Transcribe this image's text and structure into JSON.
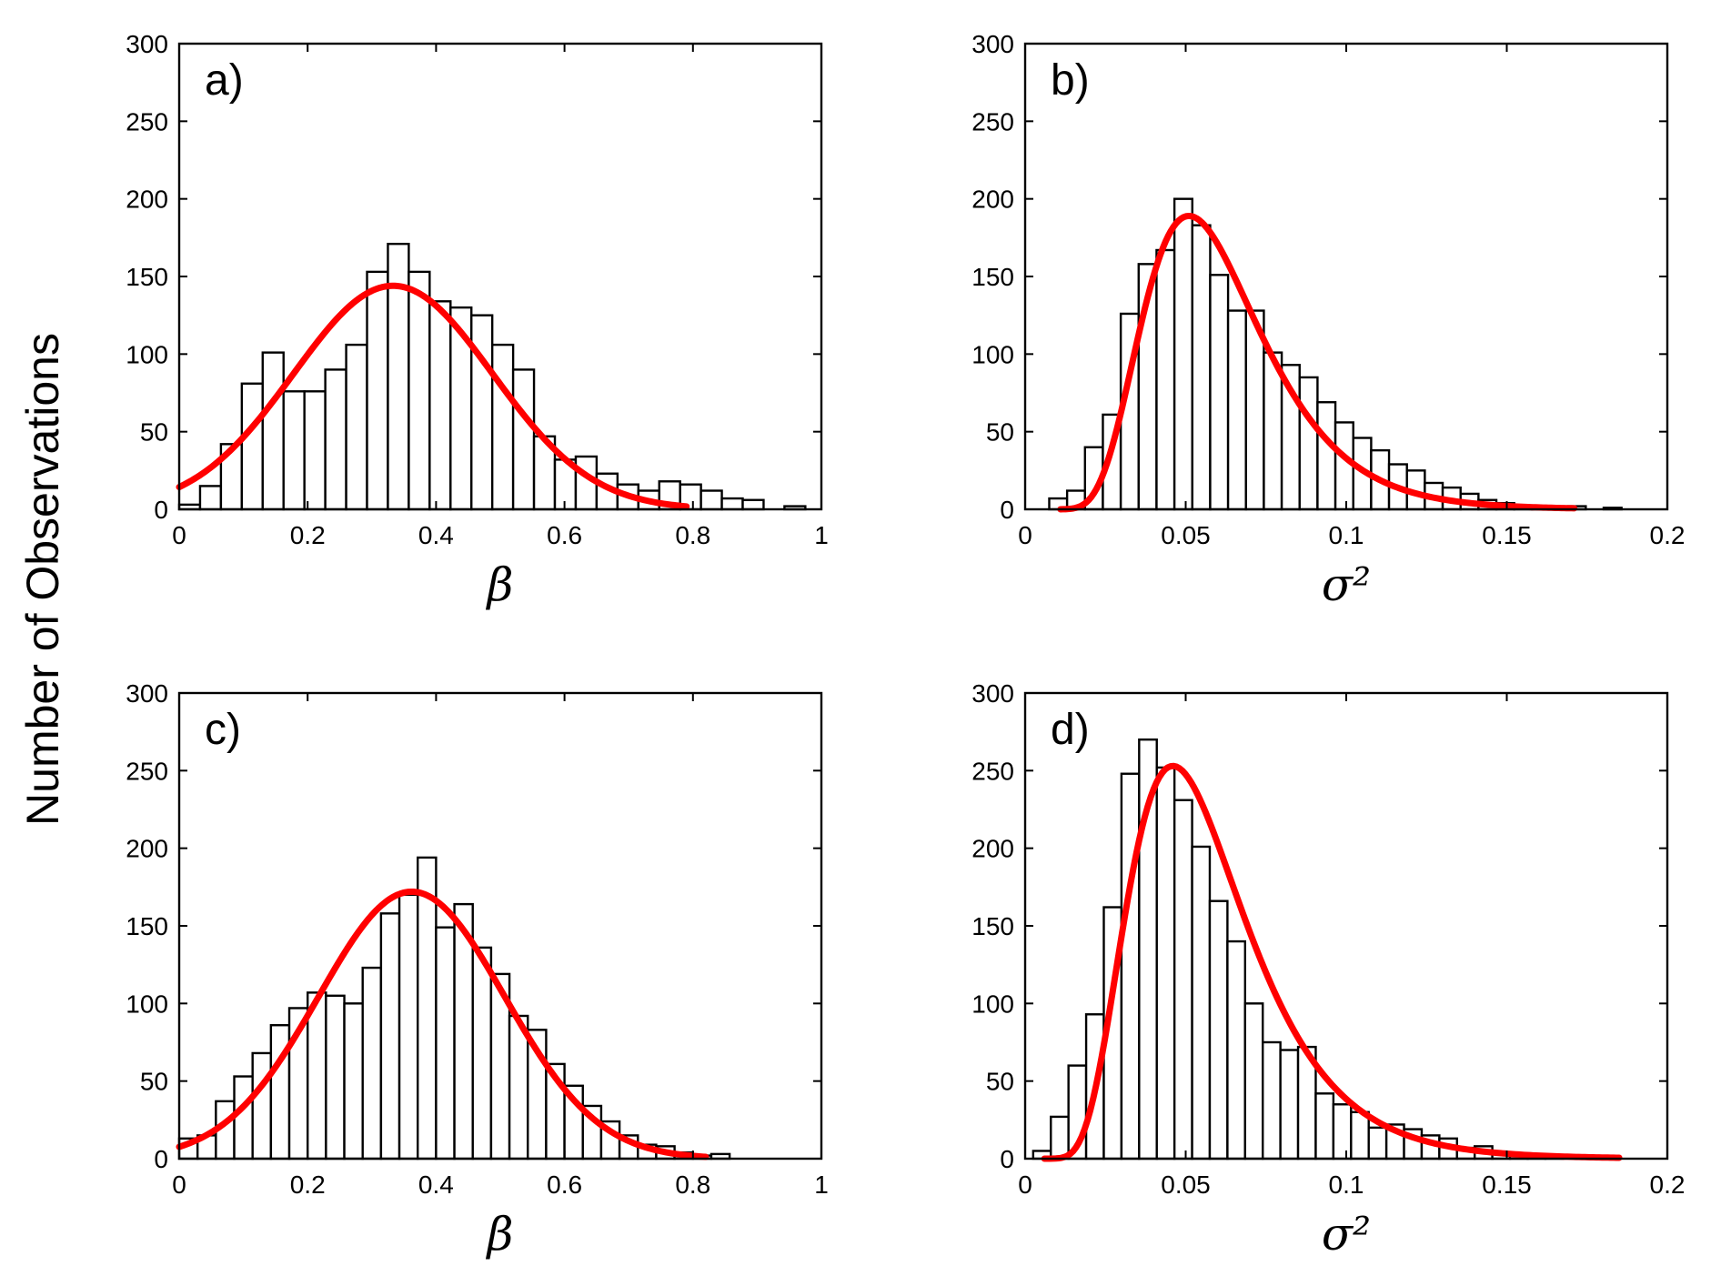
{
  "figure": {
    "ylabel": "Number of Observations",
    "colors": {
      "bar_fill": "#ffffff",
      "bar_edge": "#000000",
      "fit_line": "#ff0000"
    }
  },
  "chart_data": [
    {
      "type": "bar",
      "panel_label": "a)",
      "xlabel": "β",
      "xlim": [
        0,
        1
      ],
      "ylim": [
        0,
        300
      ],
      "xticks": [
        0,
        0.2,
        0.4,
        0.6,
        0.8,
        1
      ],
      "xtick_labels": [
        "0",
        "0.2",
        "0.4",
        "0.6",
        "0.8",
        "1"
      ],
      "yticks": [
        0,
        50,
        100,
        150,
        200,
        250,
        300
      ],
      "ytick_labels": [
        "0",
        "50",
        "100",
        "150",
        "200",
        "250",
        "300"
      ],
      "bin_edges_start": 0.0,
      "bin_width": 0.0325,
      "values": [
        3,
        15,
        42,
        81,
        101,
        76,
        76,
        90,
        106,
        153,
        171,
        153,
        134,
        130,
        125,
        106,
        90,
        47,
        32,
        34,
        23,
        16,
        12,
        18,
        16,
        12,
        7,
        6,
        0,
        2
      ],
      "fit": {
        "kind": "normal",
        "mu": 0.333,
        "sigma": 0.155,
        "peak": 144,
        "x_range": [
          0,
          0.79
        ]
      }
    },
    {
      "type": "bar",
      "panel_label": "b)",
      "xlabel": "σ²",
      "xlim": [
        0,
        0.2
      ],
      "ylim": [
        0,
        300
      ],
      "xticks": [
        0,
        0.05,
        0.1,
        0.15,
        0.2
      ],
      "xtick_labels": [
        "0",
        "0.05",
        "0.1",
        "0.15",
        "0.2"
      ],
      "yticks": [
        0,
        50,
        100,
        150,
        200,
        250,
        300
      ],
      "ytick_labels": [
        "0",
        "50",
        "100",
        "150",
        "200",
        "250",
        "300"
      ],
      "bin_edges_start": 0.0075,
      "bin_width": 0.00557,
      "values": [
        7,
        12,
        40,
        61,
        126,
        158,
        167,
        200,
        183,
        151,
        128,
        128,
        101,
        93,
        85,
        69,
        56,
        46,
        38,
        29,
        25,
        17,
        14,
        10,
        6,
        4,
        2,
        2,
        1,
        2,
        0,
        1
      ],
      "fit": {
        "kind": "lognormal",
        "mode": 0.051,
        "s": 0.36,
        "peak": 189,
        "x_range": [
          0.011,
          0.171
        ]
      }
    },
    {
      "type": "bar",
      "panel_label": "c)",
      "xlabel": "β",
      "xlim": [
        0,
        1
      ],
      "ylim": [
        0,
        300
      ],
      "xticks": [
        0,
        0.2,
        0.4,
        0.6,
        0.8,
        1
      ],
      "xtick_labels": [
        "0",
        "0.2",
        "0.4",
        "0.6",
        "0.8",
        "1"
      ],
      "yticks": [
        0,
        50,
        100,
        150,
        200,
        250,
        300
      ],
      "ytick_labels": [
        "0",
        "50",
        "100",
        "150",
        "200",
        "250",
        "300"
      ],
      "bin_edges_start": 0.0,
      "bin_width": 0.02857,
      "values": [
        13,
        15,
        37,
        53,
        68,
        86,
        97,
        107,
        105,
        100,
        123,
        158,
        170,
        194,
        149,
        164,
        136,
        119,
        92,
        83,
        61,
        47,
        34,
        24,
        15,
        9,
        8,
        4,
        2,
        3
      ],
      "fit": {
        "kind": "normal",
        "mu": 0.362,
        "sigma": 0.145,
        "peak": 172,
        "x_range": [
          0,
          0.82
        ]
      }
    },
    {
      "type": "bar",
      "panel_label": "d)",
      "xlabel": "σ²",
      "xlim": [
        0,
        0.2
      ],
      "ylim": [
        0,
        300
      ],
      "xticks": [
        0,
        0.05,
        0.1,
        0.15,
        0.2
      ],
      "xtick_labels": [
        "0",
        "0.05",
        "0.1",
        "0.15",
        "0.2"
      ],
      "yticks": [
        0,
        50,
        100,
        150,
        200,
        250,
        300
      ],
      "ytick_labels": [
        "0",
        "50",
        "100",
        "150",
        "200",
        "250",
        "300"
      ],
      "bin_edges_start": 0.0025,
      "bin_width": 0.0055,
      "values": [
        5,
        27,
        60,
        93,
        162,
        248,
        270,
        252,
        231,
        201,
        166,
        140,
        100,
        75,
        70,
        72,
        42,
        35,
        30,
        20,
        22,
        19,
        15,
        13,
        7,
        8,
        3,
        2,
        1,
        1,
        0
      ],
      "fit": {
        "kind": "lognormal",
        "mode": 0.046,
        "s": 0.4,
        "peak": 253,
        "x_range": [
          0.006,
          0.185
        ]
      }
    }
  ]
}
